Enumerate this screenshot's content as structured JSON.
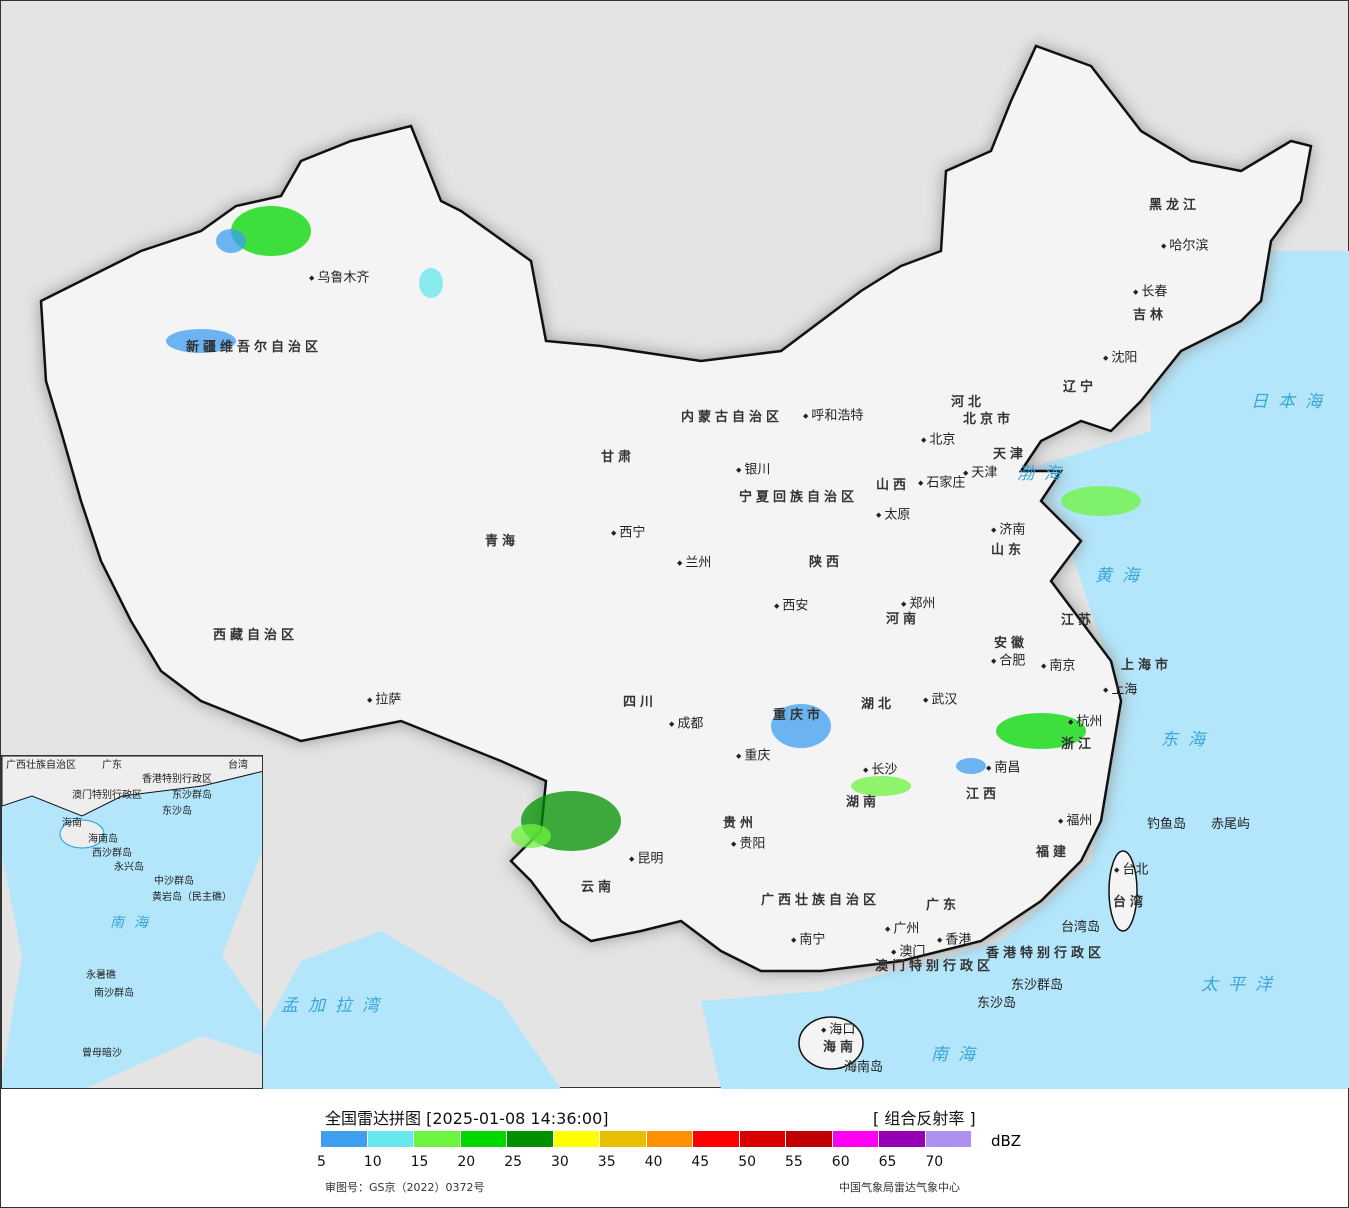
{
  "title": "全国雷达拼图 [2025-01-08 14:36:00]",
  "product": "[ 组合反射率 ]",
  "unit": "dBZ",
  "approval": "审图号：GS京（2022）0372号",
  "source": "中国气象局雷达气象中心",
  "legend": {
    "colors": [
      "#3e9ef0",
      "#66e8ec",
      "#6ef43e",
      "#00d800",
      "#009000",
      "#ffff00",
      "#e8c000",
      "#ff9000",
      "#ff0000",
      "#d80000",
      "#c00000",
      "#ff00f0",
      "#9600b4",
      "#ae90f0"
    ],
    "ticks": [
      "5",
      "10",
      "15",
      "20",
      "25",
      "30",
      "35",
      "40",
      "45",
      "50",
      "55",
      "60",
      "65",
      "70"
    ]
  },
  "colors": {
    "sea": "#b3e6fb",
    "land_outside": "#e4e4e4",
    "china_land": "#f4f4f4"
  },
  "provinces": [
    "新疆维吾尔自治区",
    "西藏自治区",
    "青海",
    "甘肃",
    "内蒙古自治区",
    "黑龙江",
    "吉林",
    "辽宁",
    "河北",
    "山西",
    "陕西",
    "河南",
    "山东",
    "江苏",
    "安徽",
    "湖北",
    "四川",
    "重庆市",
    "贵州",
    "云南",
    "湖南",
    "江西",
    "浙江",
    "福建",
    "广东",
    "广西壮族自治区",
    "海南",
    "台湾",
    "宁夏回族自治区",
    "上海市",
    "香港特别行政区",
    "澳门特别行政区",
    "北京市",
    "天津"
  ],
  "cities": [
    "乌鲁木齐",
    "拉萨",
    "西宁",
    "兰州",
    "银川",
    "呼和浩特",
    "北京",
    "天津",
    "石家庄",
    "太原",
    "济南",
    "郑州",
    "西安",
    "成都",
    "重庆",
    "贵阳",
    "昆明",
    "长沙",
    "武汉",
    "南昌",
    "合肥",
    "南京",
    "上海",
    "杭州",
    "福州",
    "台北",
    "广州",
    "香港",
    "澳门",
    "南宁",
    "海口",
    "沈阳",
    "长春",
    "哈尔滨"
  ],
  "islands": [
    "钓鱼岛",
    "赤尾屿",
    "台湾岛",
    "东沙群岛",
    "东沙岛",
    "海南岛"
  ],
  "seas": [
    "日本海",
    "渤海",
    "黄海",
    "东海",
    "太平洋",
    "南海",
    "孟加拉湾"
  ],
  "inset": {
    "labels": [
      "广西壮族自治区",
      "广东",
      "台湾",
      "香港特别行政区",
      "澳门特别行政区",
      "东沙群岛",
      "东沙岛",
      "海南",
      "海南岛",
      "西沙群岛",
      "永兴岛",
      "中沙群岛",
      "黄岩岛（民主礁）",
      "南海",
      "永暑礁",
      "南沙群岛",
      "曾母暗沙"
    ]
  }
}
